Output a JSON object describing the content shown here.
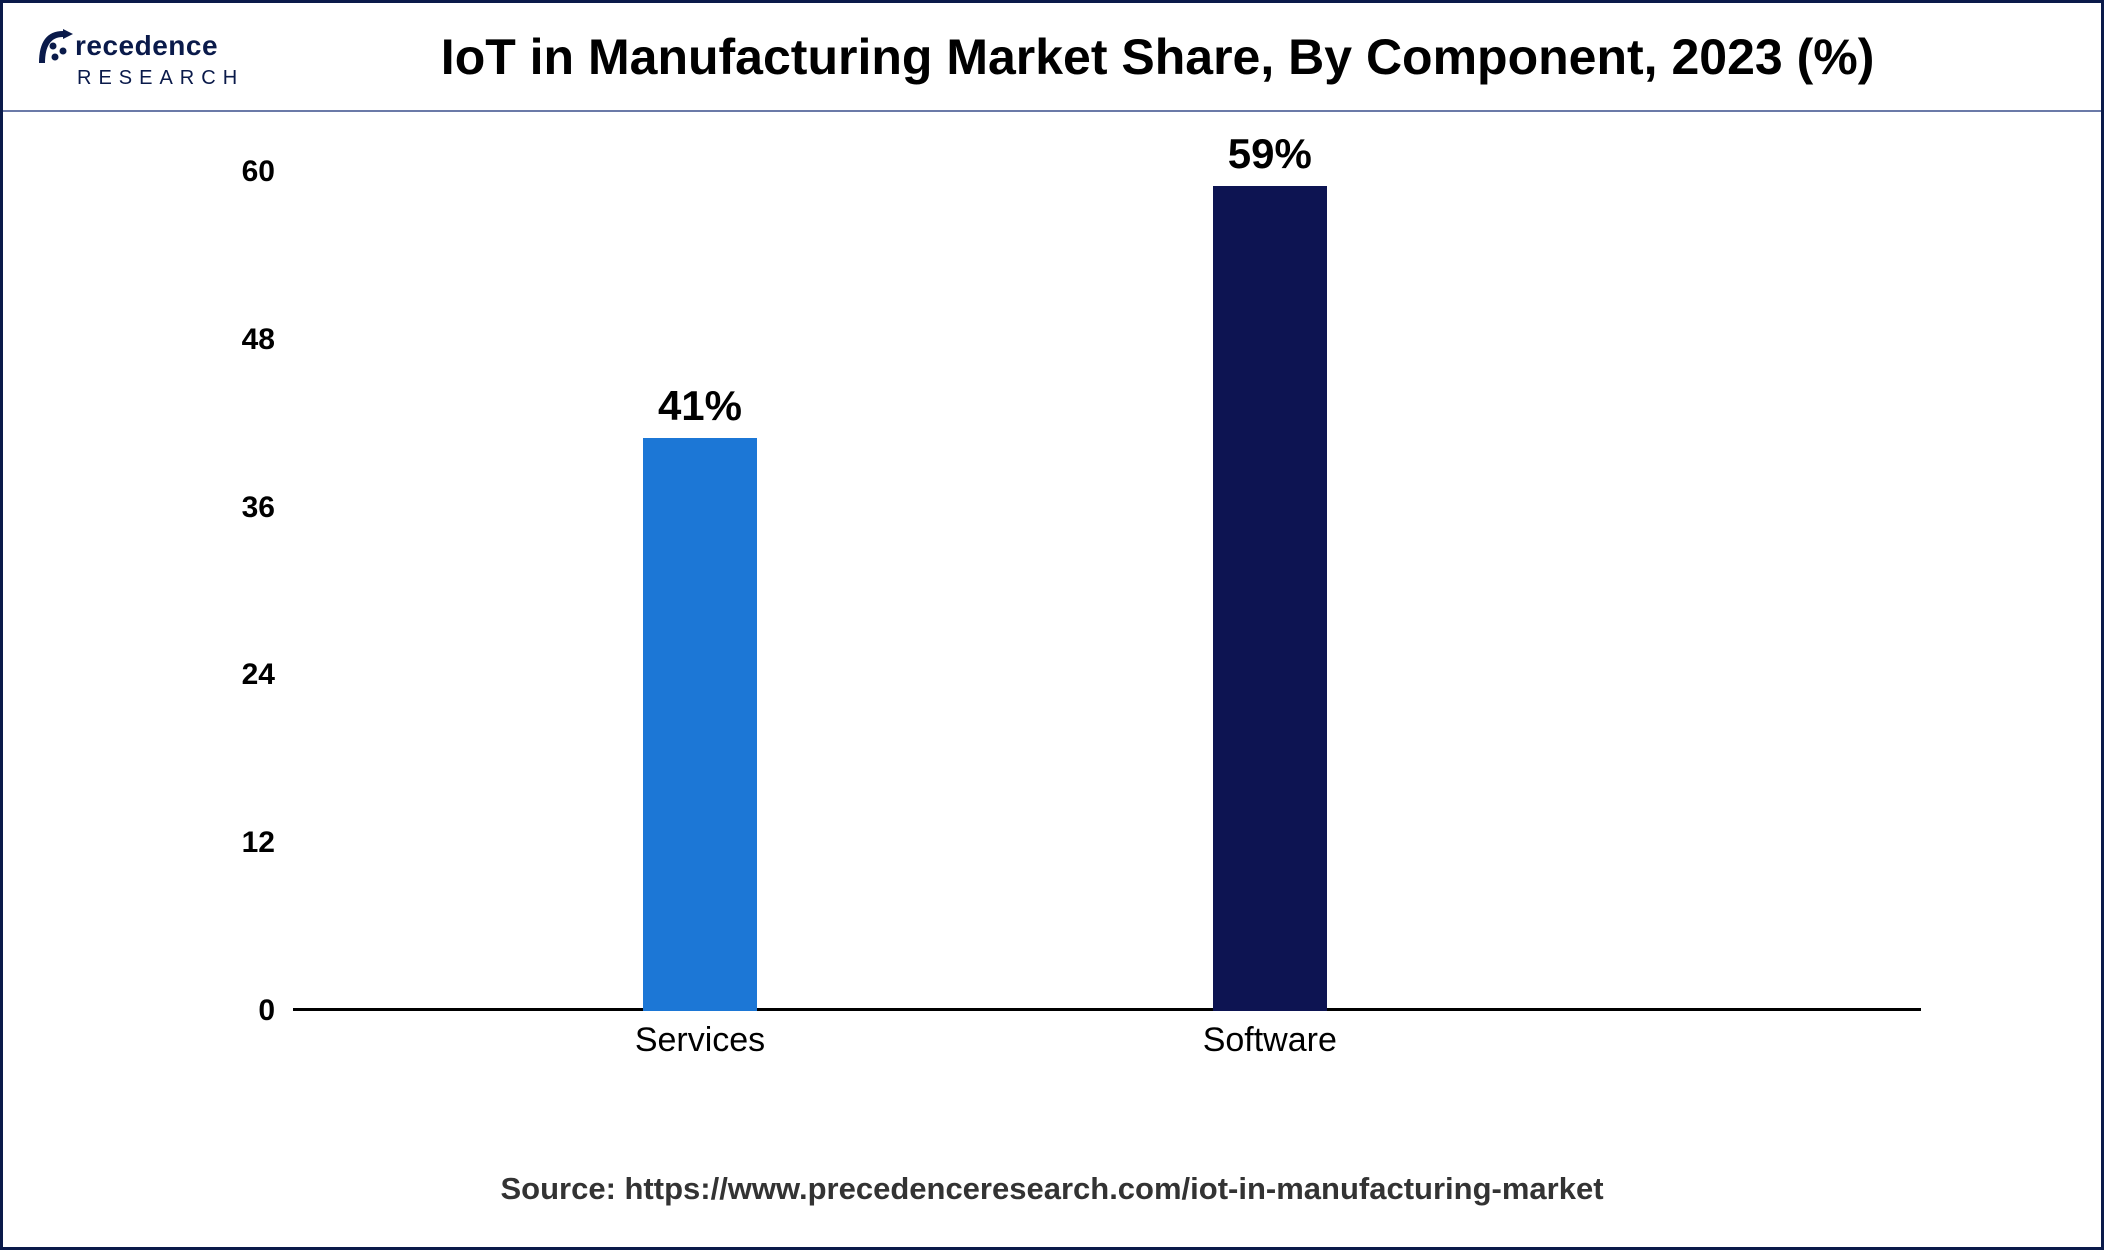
{
  "logo": {
    "brand_top": "recedence",
    "brand_sub": "RESEARCH",
    "color": "#0a1a4a"
  },
  "chart": {
    "type": "bar",
    "title": "IoT in Manufacturing Market Share, By Component, 2023 (%)",
    "categories": [
      "Services",
      "Software"
    ],
    "values": [
      41,
      59
    ],
    "value_labels": [
      "41%",
      "59%"
    ],
    "bar_colors": [
      "#1c77d6",
      "#0d1452"
    ],
    "bar_width_pct": 7,
    "bar_positions_pct": [
      25,
      60
    ],
    "ylim": [
      0,
      60
    ],
    "yticks": [
      0,
      12,
      24,
      36,
      48,
      60
    ],
    "ytick_labels": [
      "0",
      "12",
      "24",
      "36",
      "48",
      "60"
    ],
    "background_color": "#ffffff",
    "axis_color": "#000000",
    "title_fontsize": 50,
    "title_fontweight": 700,
    "tick_fontsize": 30,
    "tick_fontweight": 700,
    "bar_label_fontsize": 42,
    "bar_label_fontweight": 700,
    "x_label_fontsize": 34
  },
  "source": {
    "label": "Source: https://www.precedenceresearch.com/iot-in-manufacturing-market",
    "fontsize": 31,
    "fontweight": 700,
    "color": "#333333"
  },
  "frame": {
    "border_color": "#0a1a4a",
    "header_divider_color": "#6b7aa8"
  }
}
